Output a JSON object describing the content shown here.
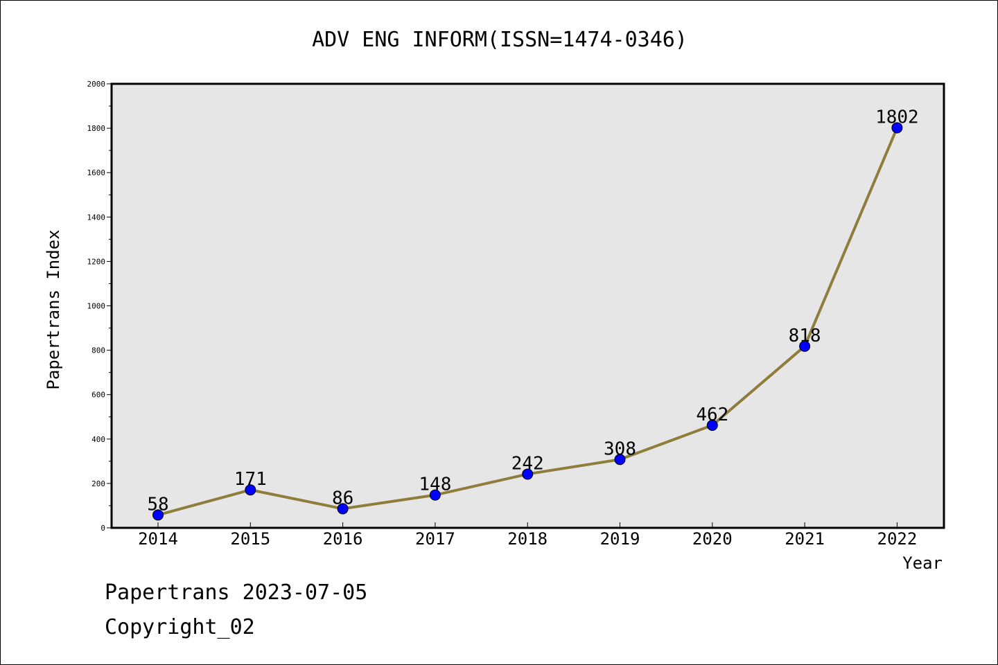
{
  "chart_data": {
    "type": "line",
    "title": "ADV ENG INFORM(ISSN=1474-0346)",
    "xlabel": "Year",
    "ylabel": "Papertrans Index",
    "categories": [
      "2014",
      "2015",
      "2016",
      "2017",
      "2018",
      "2019",
      "2020",
      "2021",
      "2022"
    ],
    "series": [
      {
        "values": [
          58,
          171,
          86,
          148,
          242,
          308,
          462,
          818,
          1802
        ]
      }
    ],
    "data_labels": [
      "58",
      "171",
      "86",
      "148",
      "242",
      "308",
      "462",
      "818",
      "1802"
    ],
    "ylim": [
      0,
      2000
    ],
    "y_ticks": [
      0,
      200,
      400,
      600,
      800,
      1000,
      1200,
      1400,
      1600,
      1800,
      2000
    ],
    "y_tick_labels": [
      "0",
      "200",
      "400",
      "600",
      "800",
      "1000",
      "1200",
      "1400",
      "1600",
      "1800",
      "2000"
    ],
    "grid": false,
    "legend": "none",
    "plot_background": "#e6e6e6",
    "line_color": "#8f7d3b",
    "marker_color": "#0000ff"
  },
  "footer": {
    "source": "Papertrans 2023-07-05",
    "copyright": "Copyright_02"
  }
}
